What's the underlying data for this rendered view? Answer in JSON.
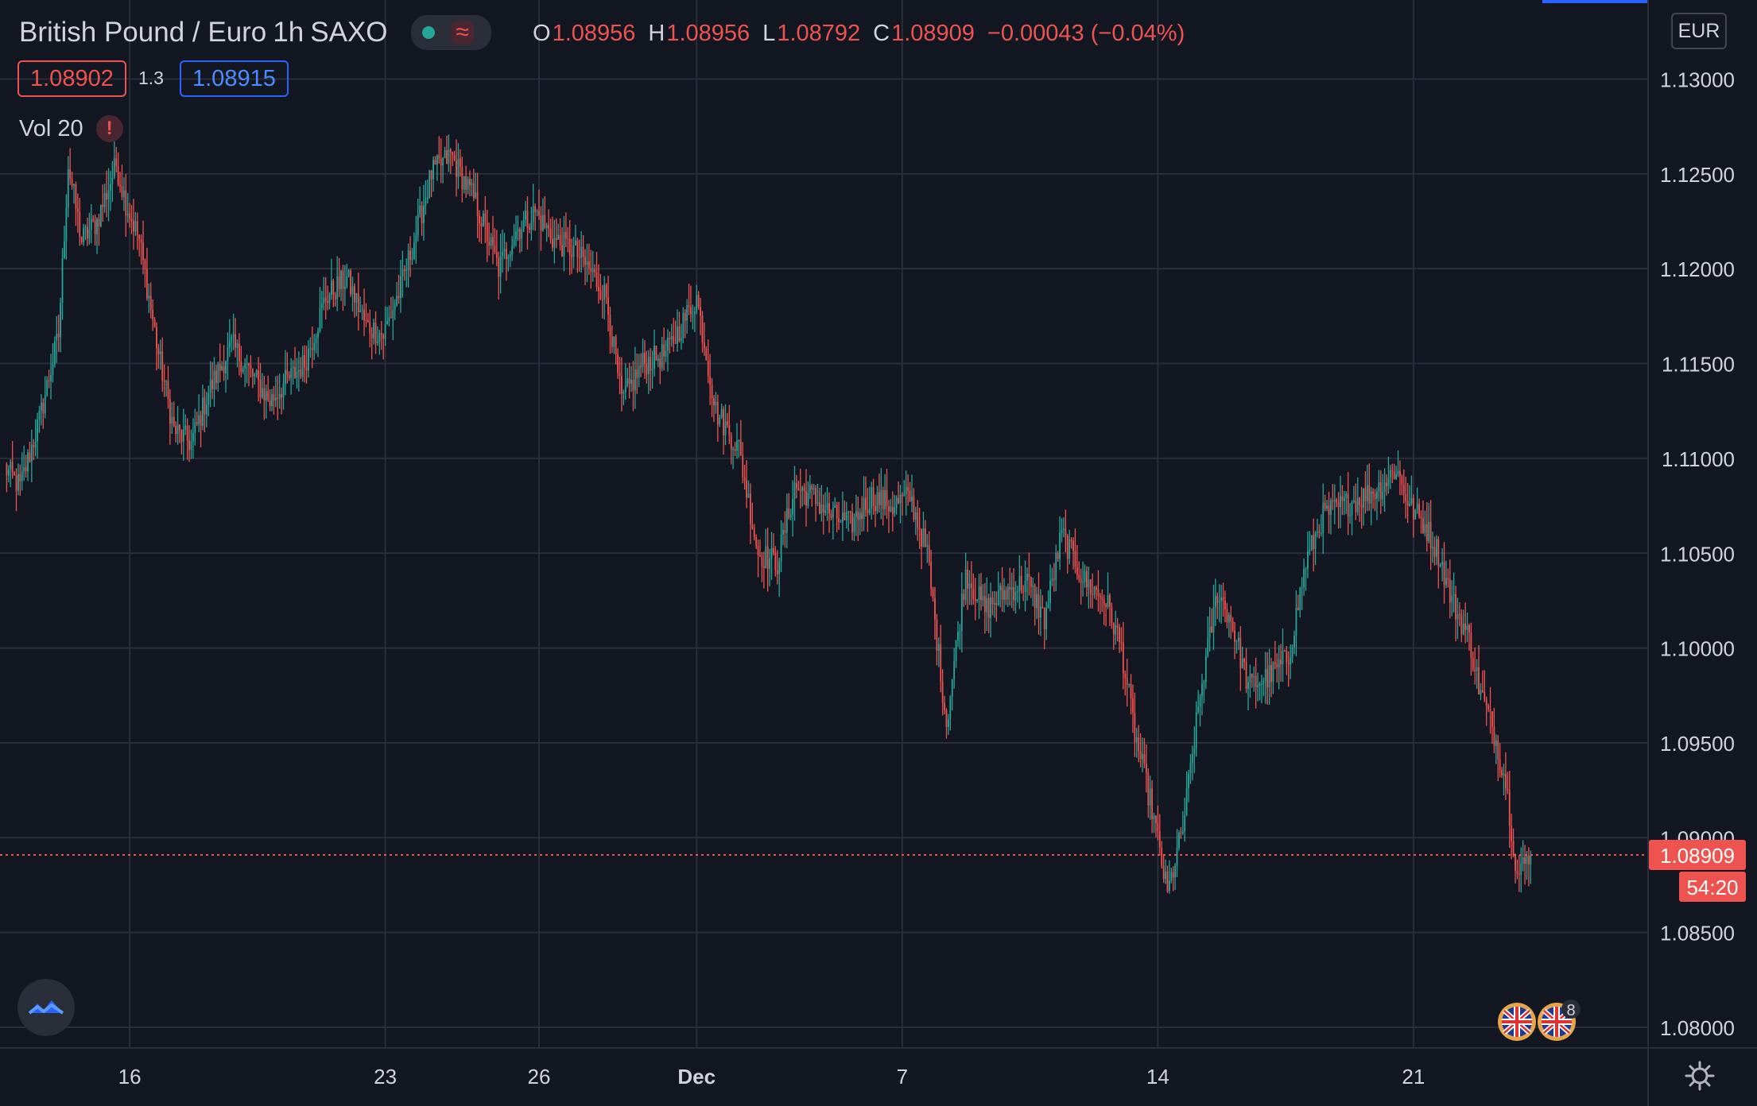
{
  "header": {
    "symbol": "British Pound / Euro",
    "interval": "1h",
    "exchange": "SAXO",
    "ohlc": {
      "o_label": "O",
      "o": "1.08956",
      "h_label": "H",
      "h": "1.08956",
      "l_label": "L",
      "l": "1.08792",
      "c_label": "C",
      "c": "1.08909",
      "change": "−0.00043 (−0.04%)"
    },
    "sell_price": "1.08902",
    "spread": "1.3",
    "buy_price": "1.08915",
    "volume_label": "Vol 20",
    "warning_glyph": "!"
  },
  "axis": {
    "currency": "EUR",
    "last_price": "1.08909",
    "countdown": "54:20"
  },
  "events_badge_count": "8",
  "colors": {
    "background": "#131722",
    "up": "#26a69a",
    "down": "#ef5350",
    "grid": "#2a2e39",
    "buy": "#2962ff"
  },
  "chart_data": {
    "type": "candlestick",
    "title": "British Pound / Euro",
    "interval": "1h",
    "y_ticks": [
      "1.13000",
      "1.12500",
      "1.12000",
      "1.11500",
      "1.11000",
      "1.10500",
      "1.10000",
      "1.09500",
      "1.09000",
      "1.08500",
      "1.08000"
    ],
    "ylim": [
      1.0775,
      1.1335
    ],
    "x_ticks": [
      "16",
      "23",
      "26",
      "Dec",
      "7",
      "14",
      "21"
    ],
    "x_tick_index": [
      65,
      198,
      278,
      360,
      467,
      600,
      733
    ],
    "total_bars": 810,
    "last_price": 1.08909,
    "grid": true,
    "anchor_closes": [
      [
        0,
        1.1095
      ],
      [
        8,
        1.1085
      ],
      [
        18,
        1.112
      ],
      [
        28,
        1.1165
      ],
      [
        33,
        1.1255
      ],
      [
        40,
        1.1215
      ],
      [
        48,
        1.1225
      ],
      [
        58,
        1.1255
      ],
      [
        63,
        1.1235
      ],
      [
        70,
        1.1215
      ],
      [
        80,
        1.1155
      ],
      [
        88,
        1.1115
      ],
      [
        97,
        1.1108
      ],
      [
        106,
        1.1135
      ],
      [
        118,
        1.116
      ],
      [
        128,
        1.1145
      ],
      [
        138,
        1.113
      ],
      [
        146,
        1.114
      ],
      [
        156,
        1.115
      ],
      [
        167,
        1.1185
      ],
      [
        178,
        1.1195
      ],
      [
        188,
        1.117
      ],
      [
        197,
        1.1165
      ],
      [
        206,
        1.119
      ],
      [
        213,
        1.1215
      ],
      [
        222,
        1.125
      ],
      [
        232,
        1.126
      ],
      [
        245,
        1.1235
      ],
      [
        257,
        1.12
      ],
      [
        266,
        1.122
      ],
      [
        276,
        1.123
      ],
      [
        286,
        1.1215
      ],
      [
        296,
        1.121
      ],
      [
        304,
        1.12
      ],
      [
        313,
        1.1185
      ],
      [
        321,
        1.113
      ],
      [
        332,
        1.115
      ],
      [
        344,
        1.1155
      ],
      [
        352,
        1.117
      ],
      [
        360,
        1.1185
      ],
      [
        370,
        1.1125
      ],
      [
        382,
        1.1105
      ],
      [
        392,
        1.105
      ],
      [
        402,
        1.1045
      ],
      [
        411,
        1.1085
      ],
      [
        420,
        1.108
      ],
      [
        430,
        1.107
      ],
      [
        440,
        1.1065
      ],
      [
        451,
        1.108
      ],
      [
        462,
        1.1075
      ],
      [
        471,
        1.108
      ],
      [
        480,
        1.105
      ],
      [
        490,
        1.096
      ],
      [
        500,
        1.104
      ],
      [
        510,
        1.102
      ],
      [
        521,
        1.103
      ],
      [
        532,
        1.1035
      ],
      [
        541,
        1.1015
      ],
      [
        550,
        1.106
      ],
      [
        562,
        1.1035
      ],
      [
        573,
        1.1025
      ],
      [
        581,
        1.1
      ],
      [
        588,
        1.0955
      ],
      [
        597,
        1.0915
      ],
      [
        605,
        1.087
      ],
      [
        613,
        1.0905
      ],
      [
        622,
        1.0975
      ],
      [
        631,
        1.103
      ],
      [
        638,
        1.1015
      ],
      [
        647,
        1.098
      ],
      [
        658,
        1.0985
      ],
      [
        668,
        1.0995
      ],
      [
        677,
        1.1045
      ],
      [
        686,
        1.107
      ],
      [
        696,
        1.1075
      ],
      [
        707,
        1.108
      ],
      [
        716,
        1.1085
      ],
      [
        724,
        1.1095
      ],
      [
        731,
        1.1075
      ],
      [
        739,
        1.1065
      ],
      [
        746,
        1.105
      ],
      [
        753,
        1.1025
      ],
      [
        762,
        1.1005
      ],
      [
        767,
        1.098
      ],
      [
        775,
        1.0955
      ],
      [
        781,
        1.093
      ],
      [
        787,
        1.088
      ],
      [
        794,
        1.0891
      ]
    ]
  }
}
